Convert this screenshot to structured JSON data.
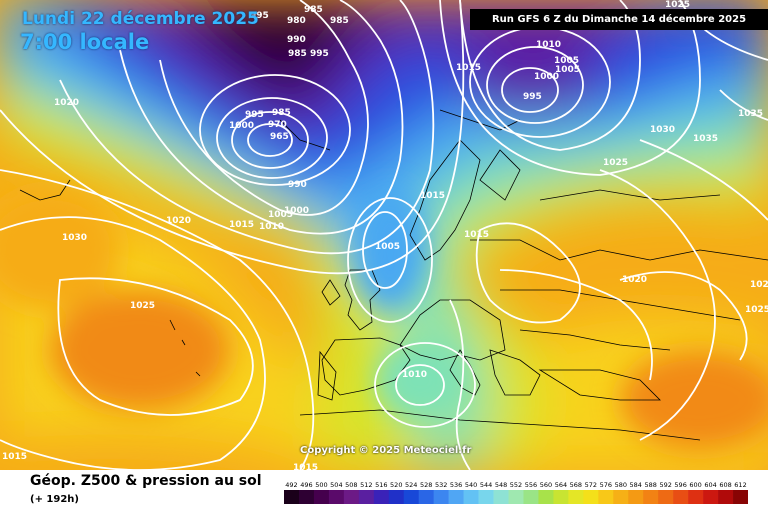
{
  "header": {
    "date_label": "Lundi 22 décembre 2025",
    "time_label": "7:00 locale",
    "run_label": "Run GFS 6 Z du Dimanche 14 décembre 2025"
  },
  "map": {
    "copyright": "Copyright © 2025 Meteociel.fr",
    "pressure_labels": [
      "985",
      "980",
      "985",
      "990",
      "985",
      "995",
      "995",
      "1010",
      "1005",
      "1005",
      "1000",
      "995",
      "1015",
      "1020",
      "995",
      "1000",
      "985",
      "970",
      "965",
      "990",
      "1005",
      "1000",
      "1010",
      "1015",
      "1015",
      "1005",
      "1030",
      "1035",
      "1025",
      "1020",
      "1030",
      "1025",
      "1020",
      "1010",
      "1015",
      "1015",
      "1025",
      "1035",
      "1025",
      "1020",
      "1015"
    ]
  },
  "footer": {
    "title": "Géop. Z500 & pression au sol",
    "subtitle": "(+ 192h)"
  },
  "legend": {
    "values": [
      492,
      496,
      500,
      504,
      508,
      512,
      516,
      520,
      524,
      528,
      532,
      536,
      540,
      544,
      548,
      552,
      556,
      560,
      564,
      568,
      572,
      576,
      580,
      584,
      588,
      592,
      596,
      600,
      604,
      608,
      612
    ],
    "colors": [
      "#1a001a",
      "#2e0033",
      "#45004d",
      "#5a0a6a",
      "#6c1a86",
      "#5a1fa0",
      "#3a22b8",
      "#2030c8",
      "#1848d8",
      "#2a66e6",
      "#3c86f0",
      "#50a6f4",
      "#63c2f4",
      "#78d6ec",
      "#8ee2d4",
      "#9fe8b0",
      "#9ae486",
      "#a8e24a",
      "#c8e432",
      "#e4e626",
      "#f4e01a",
      "#f8c818",
      "#f6b016",
      "#f49a14",
      "#f28214",
      "#ee6a14",
      "#e84e14",
      "#de3012",
      "#cc1810",
      "#b00a0a",
      "#880404"
    ]
  }
}
